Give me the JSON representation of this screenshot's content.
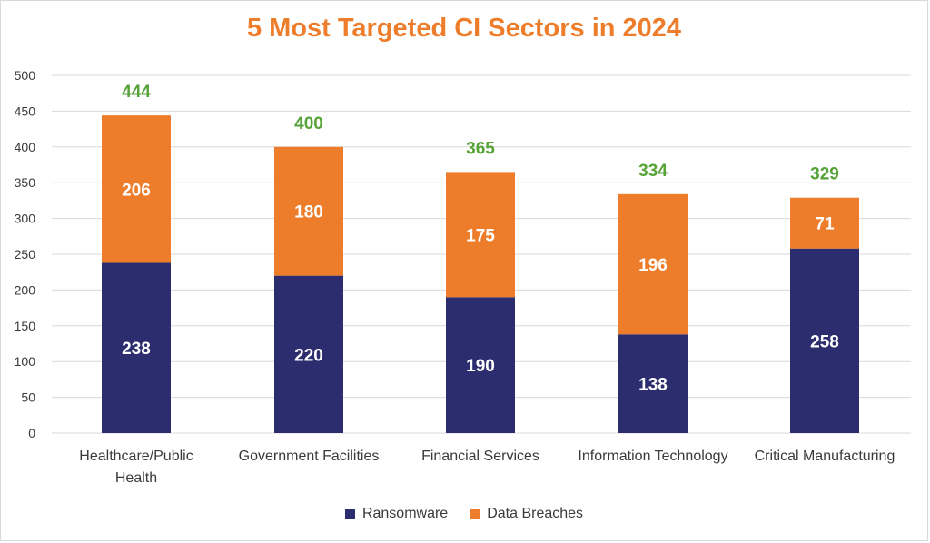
{
  "chart_data": {
    "type": "bar",
    "stacked": true,
    "title": "5 Most Targeted CI Sectors in 2024",
    "categories": [
      "Healthcare/Public Health",
      "Government Facilities",
      "Financial Services",
      "Information Technology",
      "Critical Manufacturing"
    ],
    "category_lines": [
      [
        "Healthcare/Public",
        "Health"
      ],
      [
        "Government Facilities"
      ],
      [
        "Financial Services"
      ],
      [
        "Information Technology"
      ],
      [
        "Critical Manufacturing"
      ]
    ],
    "series": [
      {
        "name": "Ransomware",
        "color": "#2b2d6e",
        "values": [
          238,
          220,
          190,
          138,
          258
        ]
      },
      {
        "name": "Data Breaches",
        "color": "#ee7d2b",
        "values": [
          206,
          180,
          175,
          196,
          71
        ]
      }
    ],
    "totals": [
      444,
      400,
      365,
      334,
      329
    ],
    "ylim": [
      0,
      500
    ],
    "yticks": [
      0,
      50,
      100,
      150,
      200,
      250,
      300,
      350,
      400,
      450,
      500
    ],
    "xlabel": "",
    "ylabel": "",
    "grid": true,
    "legend_position": "bottom",
    "colors": {
      "title": "#ee7d2b",
      "total": "#56a338",
      "grid": "#d9d9d9"
    }
  }
}
